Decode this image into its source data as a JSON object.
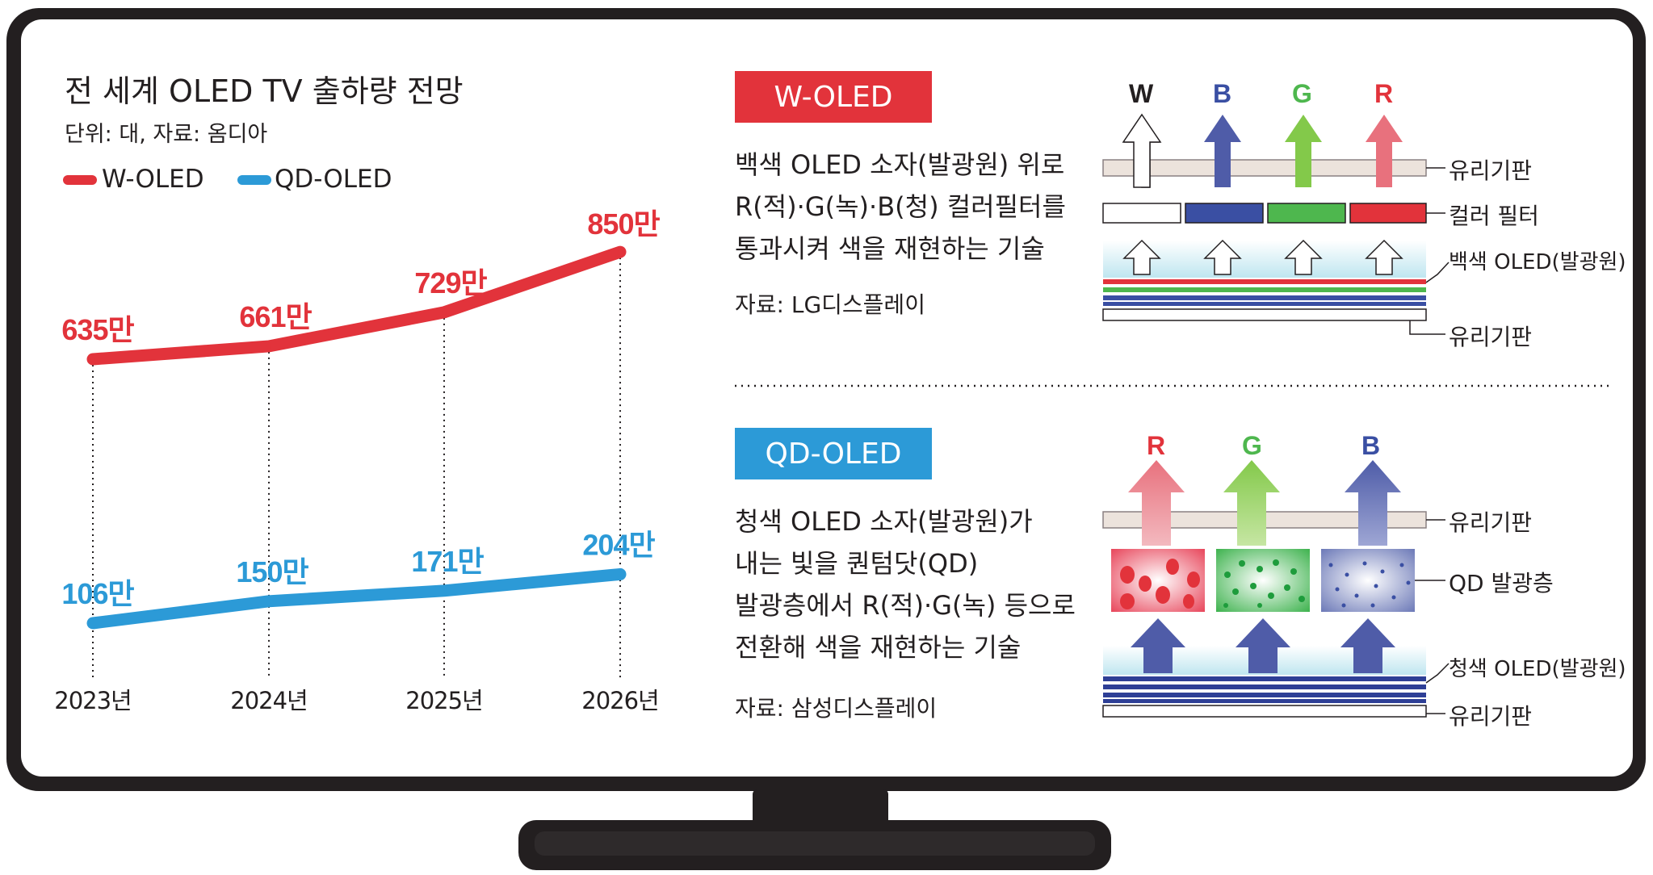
{
  "colors": {
    "w_oled": "#e2333b",
    "qd_oled": "#2c9ad7",
    "frame": "#231f20",
    "glass": "#ece3dc",
    "blue_sub": "#3a4fa3",
    "green_sub": "#4eb74e",
    "red_sub": "#e2333b"
  },
  "chart": {
    "title": "전 세계 OLED TV 출하량 전망",
    "unit_source": "단위: 대, 자료: 옴디아",
    "legend": {
      "w": "W-OLED",
      "qd": "QD-OLED"
    }
  },
  "chart_data": {
    "type": "line",
    "title": "전 세계 OLED TV 출하량 전망",
    "categories": [
      "2023년",
      "2024년",
      "2025년",
      "2026년"
    ],
    "series": [
      {
        "name": "W-OLED",
        "values": [
          635,
          661,
          729,
          850
        ],
        "labels": [
          "635만",
          "661만",
          "729만",
          "850만"
        ],
        "color": "#e2333b"
      },
      {
        "name": "QD-OLED",
        "values": [
          106,
          150,
          171,
          204
        ],
        "labels": [
          "106만",
          "150만",
          "171만",
          "204만"
        ],
        "color": "#2c9ad7"
      }
    ],
    "unit": "만 대",
    "grid": false,
    "legend_position": "top-left"
  },
  "w_section": {
    "badge": "W-OLED",
    "desc": [
      "백색 OLED 소자(발광원) 위로",
      "R(적)·G(녹)·B(청) 컬러필터를",
      "통과시켜 색을 재현하는 기술"
    ],
    "source": "자료: LG디스플레이",
    "arrow_labels": [
      "W",
      "B",
      "G",
      "R"
    ],
    "labels": {
      "glass_top": "유리기판",
      "filter": "컬러 필터",
      "oled": "백색 OLED(발광원)",
      "glass_bottom": "유리기판"
    }
  },
  "qd_section": {
    "badge": "QD-OLED",
    "desc": [
      "청색 OLED 소자(발광원)가",
      "내는 빛을 퀀텀닷(QD)",
      "발광층에서 R(적)·G(녹) 등으로",
      "전환해 색을 재현하는 기술"
    ],
    "source": "자료: 삼성디스플레이",
    "arrow_labels": [
      "R",
      "G",
      "B"
    ],
    "labels": {
      "glass_top": "유리기판",
      "qd_layer": "QD 발광층",
      "oled": "청색 OLED(발광원)",
      "glass_bottom": "유리기판"
    }
  }
}
